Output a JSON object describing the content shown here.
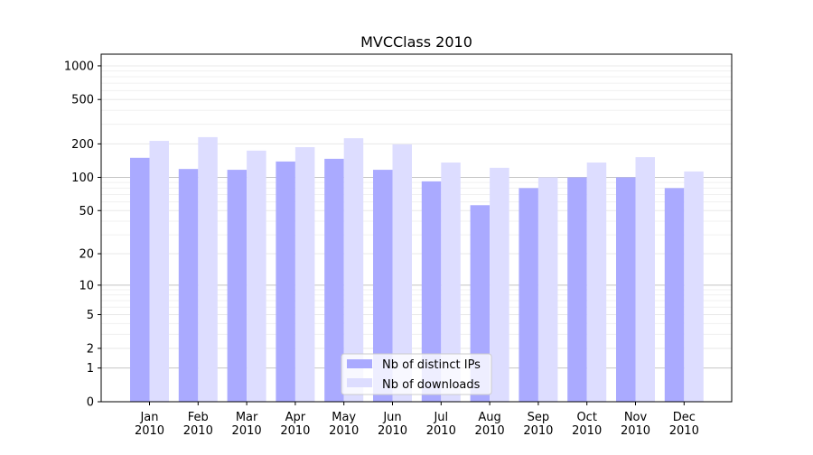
{
  "chart_data": {
    "type": "bar",
    "title": "MVCClass 2010",
    "xlabel": "",
    "ylabel": "",
    "yscale": "log(1+y)",
    "ylim": [
      0,
      1250
    ],
    "yticks": [
      0,
      1,
      2,
      5,
      10,
      20,
      50,
      100,
      200,
      500,
      1000
    ],
    "grid": true,
    "legend_position": "bottom-center",
    "categories": [
      "Jan\n2010",
      "Feb\n2010",
      "Mar\n2010",
      "Apr\n2010",
      "May\n2010",
      "Jun\n2010",
      "Jul\n2010",
      "Aug\n2010",
      "Sep\n2010",
      "Oct\n2010",
      "Nov\n2010",
      "Dec\n2010"
    ],
    "series": [
      {
        "name": "Nb of distinct IPs",
        "color": "#aaaaff",
        "values": [
          150,
          119,
          117,
          139,
          147,
          117,
          92,
          56,
          80,
          100,
          100,
          80
        ]
      },
      {
        "name": "Nb of downloads",
        "color": "#ddddff",
        "values": [
          213,
          230,
          174,
          187,
          225,
          198,
          136,
          122,
          100,
          136,
          152,
          113
        ]
      }
    ]
  }
}
